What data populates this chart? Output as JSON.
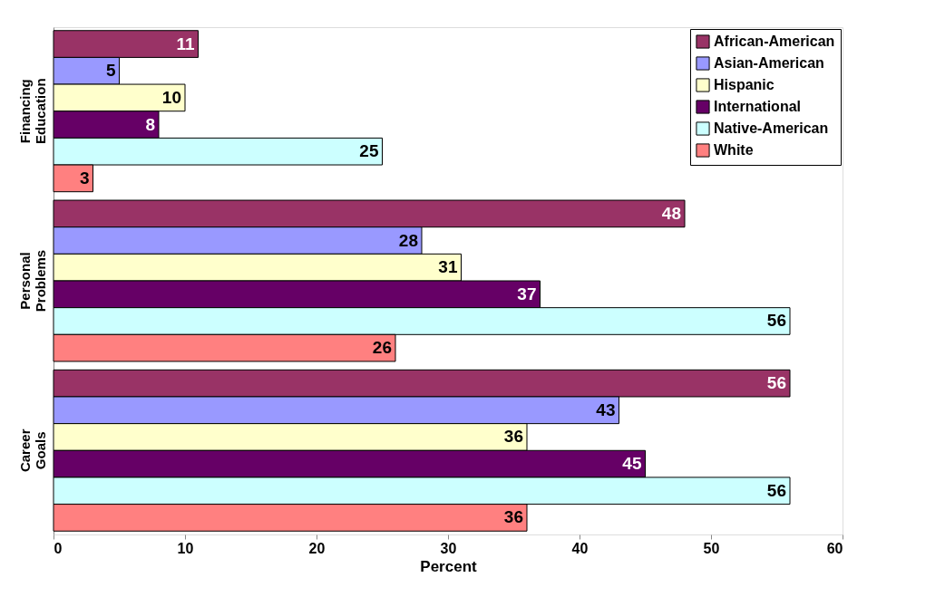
{
  "chart_data": {
    "type": "bar",
    "orientation": "horizontal",
    "xlabel": "Percent",
    "categories": [
      "Financing Education",
      "Personal Problems",
      "Career Goals"
    ],
    "series": [
      {
        "name": "African-American",
        "color": "#993366",
        "values": [
          11,
          48,
          56
        ]
      },
      {
        "name": "Asian-American",
        "color": "#9999ff",
        "values": [
          5,
          28,
          43
        ]
      },
      {
        "name": "Hispanic",
        "color": "#ffffcc",
        "values": [
          10,
          31,
          36
        ]
      },
      {
        "name": "International",
        "color": "#660066",
        "values": [
          8,
          37,
          45
        ]
      },
      {
        "name": "Native-American",
        "color": "#ccffff",
        "values": [
          25,
          56,
          56
        ]
      },
      {
        "name": "White",
        "color": "#ff8080",
        "values": [
          3,
          26,
          36
        ]
      }
    ],
    "xlim": [
      0,
      60
    ],
    "xticks": [
      0,
      10,
      20,
      30,
      40,
      50,
      60
    ],
    "data_labels": true,
    "legend": "top right",
    "grid": false
  }
}
